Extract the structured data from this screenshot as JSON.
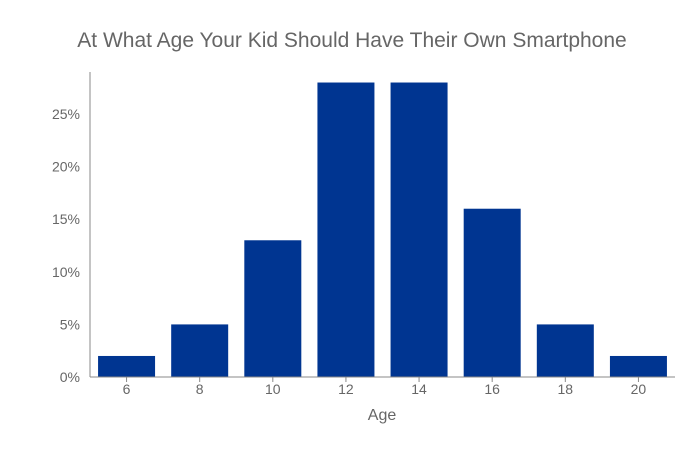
{
  "chart_data": {
    "type": "bar",
    "title": "At What Age Your Kid Should Have Their Own Smartphone",
    "xlabel": "Age",
    "ylabel": "",
    "categories": [
      "6",
      "8",
      "10",
      "12",
      "14",
      "16",
      "18",
      "20"
    ],
    "values": [
      2,
      5,
      13,
      28,
      28,
      16,
      5,
      2
    ],
    "y_unit": "%",
    "ylim": [
      0,
      29
    ],
    "yticks": [
      0,
      5,
      10,
      15,
      20,
      25
    ],
    "ytick_labels": [
      "0%",
      "5%",
      "10%",
      "15%",
      "20%",
      "25%"
    ],
    "grid": false,
    "bar_color": "#003591",
    "axis_color": "#888888"
  }
}
